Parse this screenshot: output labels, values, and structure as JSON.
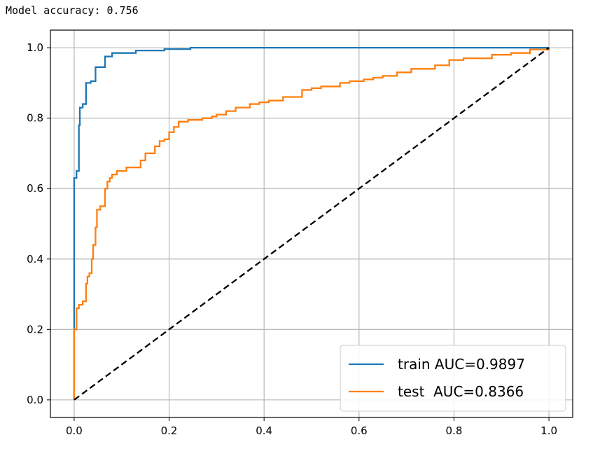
{
  "output": {
    "text": "Model accuracy: 0.756"
  },
  "chart_data": {
    "type": "line",
    "title": "",
    "xlabel": "",
    "ylabel": "",
    "xlim": [
      -0.05,
      1.05
    ],
    "ylim": [
      -0.05,
      1.05
    ],
    "grid": true,
    "legend_position": "lower-right",
    "x_ticks": [
      0.0,
      0.2,
      0.4,
      0.6,
      0.8,
      1.0
    ],
    "x_tick_labels": [
      "0.0",
      "0.2",
      "0.4",
      "0.6",
      "0.8",
      "1.0"
    ],
    "y_ticks": [
      0.0,
      0.2,
      0.4,
      0.6,
      0.8,
      1.0
    ],
    "y_tick_labels": [
      "0.0",
      "0.2",
      "0.4",
      "0.6",
      "0.8",
      "1.0"
    ],
    "series": [
      {
        "name": "train AUC=0.9897",
        "color": "#1f77b4",
        "style": "solid",
        "points": [
          [
            0.0,
            0.0
          ],
          [
            0.0,
            0.63
          ],
          [
            0.005,
            0.63
          ],
          [
            0.005,
            0.65
          ],
          [
            0.01,
            0.65
          ],
          [
            0.01,
            0.78
          ],
          [
            0.012,
            0.78
          ],
          [
            0.012,
            0.83
          ],
          [
            0.018,
            0.83
          ],
          [
            0.018,
            0.84
          ],
          [
            0.025,
            0.84
          ],
          [
            0.025,
            0.9
          ],
          [
            0.035,
            0.9
          ],
          [
            0.035,
            0.905
          ],
          [
            0.045,
            0.905
          ],
          [
            0.045,
            0.945
          ],
          [
            0.065,
            0.945
          ],
          [
            0.065,
            0.975
          ],
          [
            0.08,
            0.975
          ],
          [
            0.08,
            0.985
          ],
          [
            0.13,
            0.985
          ],
          [
            0.13,
            0.992
          ],
          [
            0.19,
            0.992
          ],
          [
            0.19,
            0.996
          ],
          [
            0.245,
            0.996
          ],
          [
            0.245,
            1.0
          ],
          [
            1.0,
            1.0
          ]
        ]
      },
      {
        "name": "test  AUC=0.8366",
        "color": "#ff7f0e",
        "style": "solid",
        "points": [
          [
            0.0,
            0.0
          ],
          [
            0.0,
            0.2
          ],
          [
            0.005,
            0.2
          ],
          [
            0.005,
            0.26
          ],
          [
            0.01,
            0.26
          ],
          [
            0.01,
            0.27
          ],
          [
            0.018,
            0.27
          ],
          [
            0.018,
            0.28
          ],
          [
            0.025,
            0.28
          ],
          [
            0.025,
            0.33
          ],
          [
            0.028,
            0.33
          ],
          [
            0.028,
            0.35
          ],
          [
            0.032,
            0.35
          ],
          [
            0.032,
            0.36
          ],
          [
            0.037,
            0.36
          ],
          [
            0.037,
            0.4
          ],
          [
            0.04,
            0.4
          ],
          [
            0.04,
            0.44
          ],
          [
            0.045,
            0.44
          ],
          [
            0.045,
            0.49
          ],
          [
            0.048,
            0.49
          ],
          [
            0.048,
            0.54
          ],
          [
            0.055,
            0.54
          ],
          [
            0.055,
            0.55
          ],
          [
            0.065,
            0.55
          ],
          [
            0.065,
            0.6
          ],
          [
            0.07,
            0.6
          ],
          [
            0.07,
            0.62
          ],
          [
            0.075,
            0.62
          ],
          [
            0.075,
            0.63
          ],
          [
            0.08,
            0.63
          ],
          [
            0.08,
            0.64
          ],
          [
            0.09,
            0.64
          ],
          [
            0.09,
            0.65
          ],
          [
            0.11,
            0.65
          ],
          [
            0.11,
            0.66
          ],
          [
            0.14,
            0.66
          ],
          [
            0.14,
            0.68
          ],
          [
            0.15,
            0.68
          ],
          [
            0.15,
            0.7
          ],
          [
            0.17,
            0.7
          ],
          [
            0.17,
            0.72
          ],
          [
            0.18,
            0.72
          ],
          [
            0.18,
            0.735
          ],
          [
            0.19,
            0.735
          ],
          [
            0.19,
            0.74
          ],
          [
            0.2,
            0.74
          ],
          [
            0.2,
            0.76
          ],
          [
            0.21,
            0.76
          ],
          [
            0.21,
            0.775
          ],
          [
            0.22,
            0.775
          ],
          [
            0.22,
            0.79
          ],
          [
            0.24,
            0.79
          ],
          [
            0.24,
            0.795
          ],
          [
            0.27,
            0.795
          ],
          [
            0.27,
            0.8
          ],
          [
            0.29,
            0.8
          ],
          [
            0.29,
            0.805
          ],
          [
            0.3,
            0.805
          ],
          [
            0.3,
            0.81
          ],
          [
            0.32,
            0.81
          ],
          [
            0.32,
            0.82
          ],
          [
            0.34,
            0.82
          ],
          [
            0.34,
            0.83
          ],
          [
            0.37,
            0.83
          ],
          [
            0.37,
            0.84
          ],
          [
            0.39,
            0.84
          ],
          [
            0.39,
            0.845
          ],
          [
            0.41,
            0.845
          ],
          [
            0.41,
            0.85
          ],
          [
            0.44,
            0.85
          ],
          [
            0.44,
            0.86
          ],
          [
            0.48,
            0.86
          ],
          [
            0.48,
            0.88
          ],
          [
            0.5,
            0.88
          ],
          [
            0.5,
            0.885
          ],
          [
            0.52,
            0.885
          ],
          [
            0.52,
            0.89
          ],
          [
            0.56,
            0.89
          ],
          [
            0.56,
            0.9
          ],
          [
            0.58,
            0.9
          ],
          [
            0.58,
            0.905
          ],
          [
            0.61,
            0.905
          ],
          [
            0.61,
            0.91
          ],
          [
            0.63,
            0.91
          ],
          [
            0.63,
            0.915
          ],
          [
            0.65,
            0.915
          ],
          [
            0.65,
            0.92
          ],
          [
            0.68,
            0.92
          ],
          [
            0.68,
            0.93
          ],
          [
            0.71,
            0.93
          ],
          [
            0.71,
            0.94
          ],
          [
            0.76,
            0.94
          ],
          [
            0.76,
            0.95
          ],
          [
            0.79,
            0.95
          ],
          [
            0.79,
            0.965
          ],
          [
            0.82,
            0.965
          ],
          [
            0.82,
            0.97
          ],
          [
            0.88,
            0.97
          ],
          [
            0.88,
            0.98
          ],
          [
            0.92,
            0.98
          ],
          [
            0.92,
            0.985
          ],
          [
            0.96,
            0.985
          ],
          [
            0.96,
            0.995
          ],
          [
            1.0,
            0.995
          ],
          [
            1.0,
            1.0
          ]
        ]
      },
      {
        "name": "",
        "color": "#000000",
        "style": "dashed",
        "points": [
          [
            0.0,
            0.0
          ],
          [
            1.0,
            1.0
          ]
        ]
      }
    ],
    "legend": [
      {
        "label": "train AUC=0.9897",
        "color": "#1f77b4"
      },
      {
        "label": "test  AUC=0.8366",
        "color": "#ff7f0e"
      }
    ]
  }
}
